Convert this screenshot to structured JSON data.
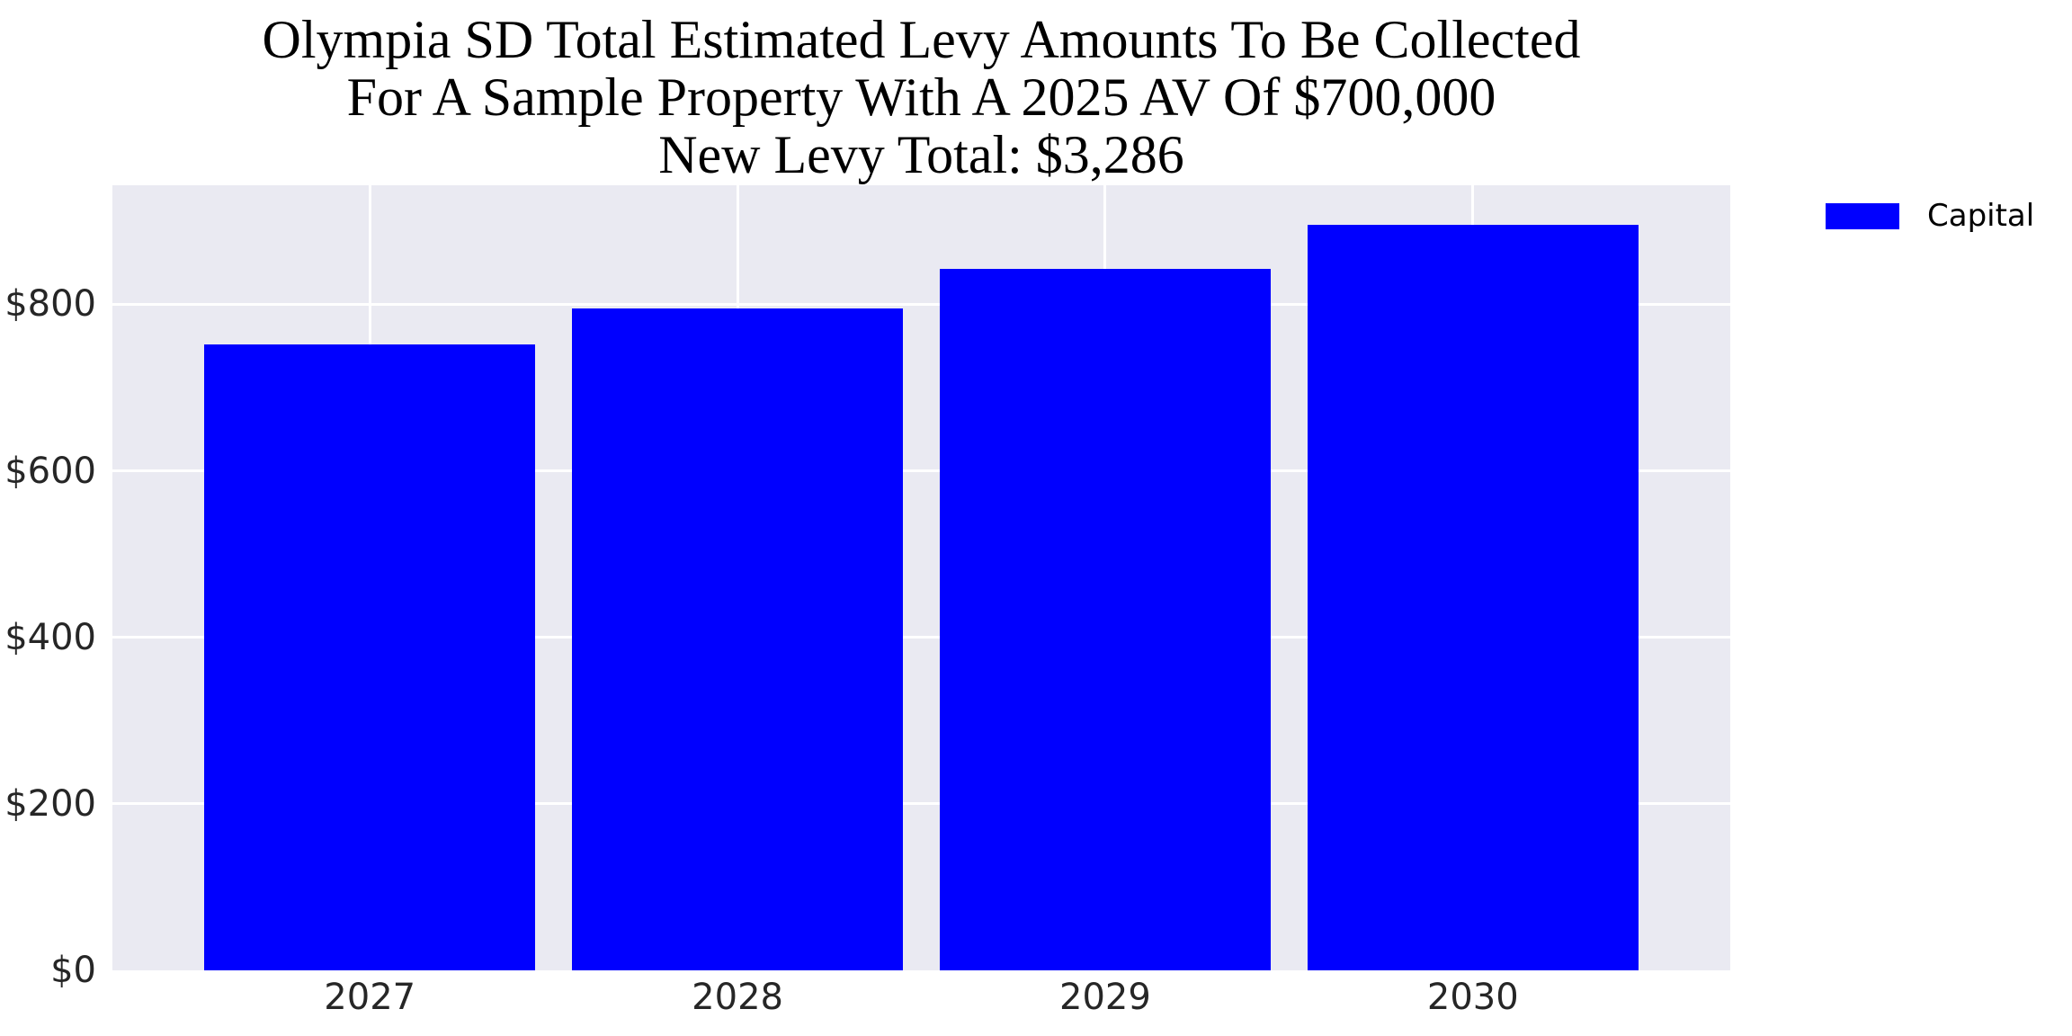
{
  "figure": {
    "title_lines": [
      "Olympia SD Total Estimated Levy Amounts To Be Collected",
      "For A Sample Property With A 2025 AV Of $700,000",
      "New Levy Total: $3,286"
    ]
  },
  "legend": {
    "label": "Capital",
    "swatch_color": "#0000ff"
  },
  "chart_data": {
    "type": "bar",
    "title": "Olympia SD Total Estimated Levy Amounts To Be Collected For A Sample Property With A 2025 AV Of $700,000 New Levy Total: $3,286",
    "categories": [
      "2027",
      "2028",
      "2029",
      "2030"
    ],
    "series": [
      {
        "name": "Capital",
        "color": "#0000ff",
        "values": [
          752,
          795,
          843,
          896
        ]
      }
    ],
    "new_levy_total_label": "$3,286",
    "xlabel": "",
    "ylabel": "",
    "ylim": [
      0,
      943
    ],
    "yticks": [
      0,
      200,
      400,
      600,
      800
    ],
    "ytick_labels": [
      "$0",
      "$200",
      "$400",
      "$600",
      "$800"
    ],
    "grid": true,
    "grid_color": "#ffffff",
    "plot_background": "#eaeaf2",
    "legend_position": "outside-upper-right",
    "bar_width_fraction": 0.9,
    "x_margin_fraction": 0.7
  }
}
